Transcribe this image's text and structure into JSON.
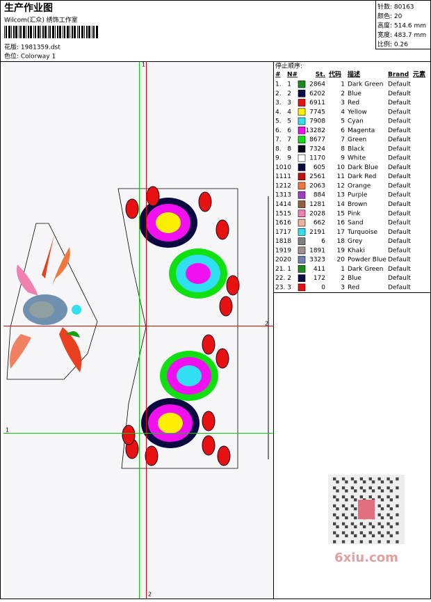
{
  "header": {
    "title": "生产作业图",
    "studio": "Wilcom(汇众) 绣饰工作室",
    "design": "花版: 1981359.dst",
    "colorway": "色位: Colorway 1"
  },
  "info": [
    "针数: 80163",
    "颜色: 20",
    "高度: 514.6 mm",
    "宽度: 483.7 mm",
    "比例: 0.26"
  ],
  "table": {
    "title": "停止顺序:",
    "columns": [
      "#",
      "N#",
      "St.",
      "代码",
      "描述",
      "Brand",
      "元素"
    ],
    "rows": [
      [
        "1.",
        1,
        "#1a8a1a",
        2864,
        1,
        "Dark Green",
        "Default"
      ],
      [
        "2.",
        2,
        "#0a0a4a",
        6202,
        2,
        "Blue",
        "Default"
      ],
      [
        "3.",
        3,
        "#e81010",
        6911,
        3,
        "Red",
        "Default"
      ],
      [
        "4.",
        4,
        "#ffee00",
        7745,
        4,
        "Yellow",
        "Default"
      ],
      [
        "5.",
        5,
        "#30e0f0",
        7908,
        5,
        "Cyan",
        "Default"
      ],
      [
        "6.",
        6,
        "#f010f0",
        13282,
        6,
        "Magenta",
        "Default"
      ],
      [
        "7.",
        7,
        "#10e010",
        8677,
        7,
        "Green",
        "Default"
      ],
      [
        "8.",
        8,
        "#080818",
        7324,
        8,
        "Black",
        "Default"
      ],
      [
        "9.",
        9,
        "#ffffff",
        1170,
        9,
        "White",
        "Default"
      ],
      [
        "10.",
        10,
        "#0a0a40",
        605,
        10,
        "Dark Blue",
        "Default"
      ],
      [
        "11.",
        11,
        "#c01010",
        2561,
        11,
        "Dark Red",
        "Default"
      ],
      [
        "12.",
        12,
        "#f07840",
        2063,
        12,
        "Orange",
        "Default"
      ],
      [
        "13.",
        13,
        "#a040c0",
        884,
        13,
        "Purple",
        "Default"
      ],
      [
        "14.",
        14,
        "#906040",
        1281,
        14,
        "Brown",
        "Default"
      ],
      [
        "15.",
        15,
        "#f080b0",
        2028,
        15,
        "Pink",
        "Default"
      ],
      [
        "16.",
        16,
        "#f0b0a0",
        662,
        16,
        "Sand",
        "Default"
      ],
      [
        "17.",
        17,
        "#30e0f0",
        2191,
        17,
        "Turquoise",
        "Default"
      ],
      [
        "18.",
        18,
        "#808080",
        6,
        18,
        "Grey",
        "Default"
      ],
      [
        "19.",
        19,
        "#a09090",
        1891,
        19,
        "Khaki",
        "Default"
      ],
      [
        "20.",
        20,
        "#7080b0",
        3323,
        20,
        "Powder Blue",
        "Default"
      ],
      [
        "21.",
        1,
        "#1a8a1a",
        411,
        1,
        "Dark Green",
        "Default"
      ],
      [
        "22.",
        2,
        "#0a0a4a",
        172,
        2,
        "Blue",
        "Default"
      ],
      [
        "23.",
        3,
        "#e81010",
        0,
        3,
        "Red",
        "Default"
      ]
    ]
  },
  "guides": {
    "top": "1",
    "right": "2",
    "left": "1",
    "bottom": "2"
  },
  "watermark": "6xiu.com"
}
